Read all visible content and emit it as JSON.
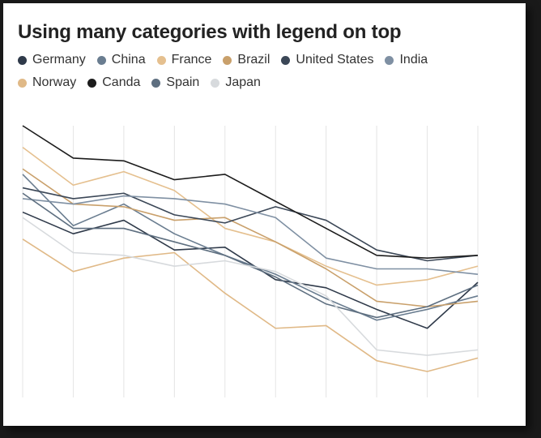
{
  "chart_data": {
    "type": "line",
    "title": "Using many categories with legend on top",
    "xlabel": "",
    "ylabel": "",
    "x": [
      0,
      1,
      2,
      3,
      4,
      5,
      6,
      7,
      8,
      9
    ],
    "ylim": [
      0,
      100
    ],
    "grid": "vertical",
    "legend": "top",
    "series": [
      {
        "name": "Germany",
        "color": "#2f3a4a",
        "values": [
          68,
          60,
          65,
          54,
          55,
          43,
          40,
          32,
          25,
          42
        ]
      },
      {
        "name": "China",
        "color": "#6a7d90",
        "values": [
          82,
          63,
          71,
          60,
          52,
          45,
          36,
          28,
          32,
          37
        ]
      },
      {
        "name": "France",
        "color": "#e5c08f",
        "values": [
          92,
          78,
          83,
          76,
          62,
          57,
          48,
          41,
          43,
          48
        ]
      },
      {
        "name": "Brazil",
        "color": "#c9a06b",
        "values": [
          84,
          71,
          70,
          65,
          66,
          57,
          47,
          35,
          33,
          35
        ]
      },
      {
        "name": "United States",
        "color": "#3b4757",
        "values": [
          77,
          73,
          75,
          67,
          64,
          70,
          65,
          54,
          50,
          52
        ]
      },
      {
        "name": "India",
        "color": "#7f90a3",
        "values": [
          73,
          71,
          74,
          73,
          71,
          66,
          51,
          47,
          47,
          45
        ]
      },
      {
        "name": "Norway",
        "color": "#e0b987",
        "values": [
          58,
          46,
          51,
          53,
          38,
          25,
          26,
          13,
          9,
          14
        ]
      },
      {
        "name": "Canda",
        "color": "#1c1c1c",
        "values": [
          100,
          88,
          87,
          80,
          82,
          72,
          62,
          52,
          51,
          52
        ]
      },
      {
        "name": "Spain",
        "color": "#5e6f80",
        "values": [
          75,
          62,
          62,
          57,
          52,
          44,
          34,
          29,
          33,
          41
        ]
      },
      {
        "name": "Japan",
        "color": "#d7dadd",
        "values": [
          66,
          53,
          52,
          48,
          50,
          46,
          37,
          17,
          15,
          17
        ]
      }
    ]
  }
}
